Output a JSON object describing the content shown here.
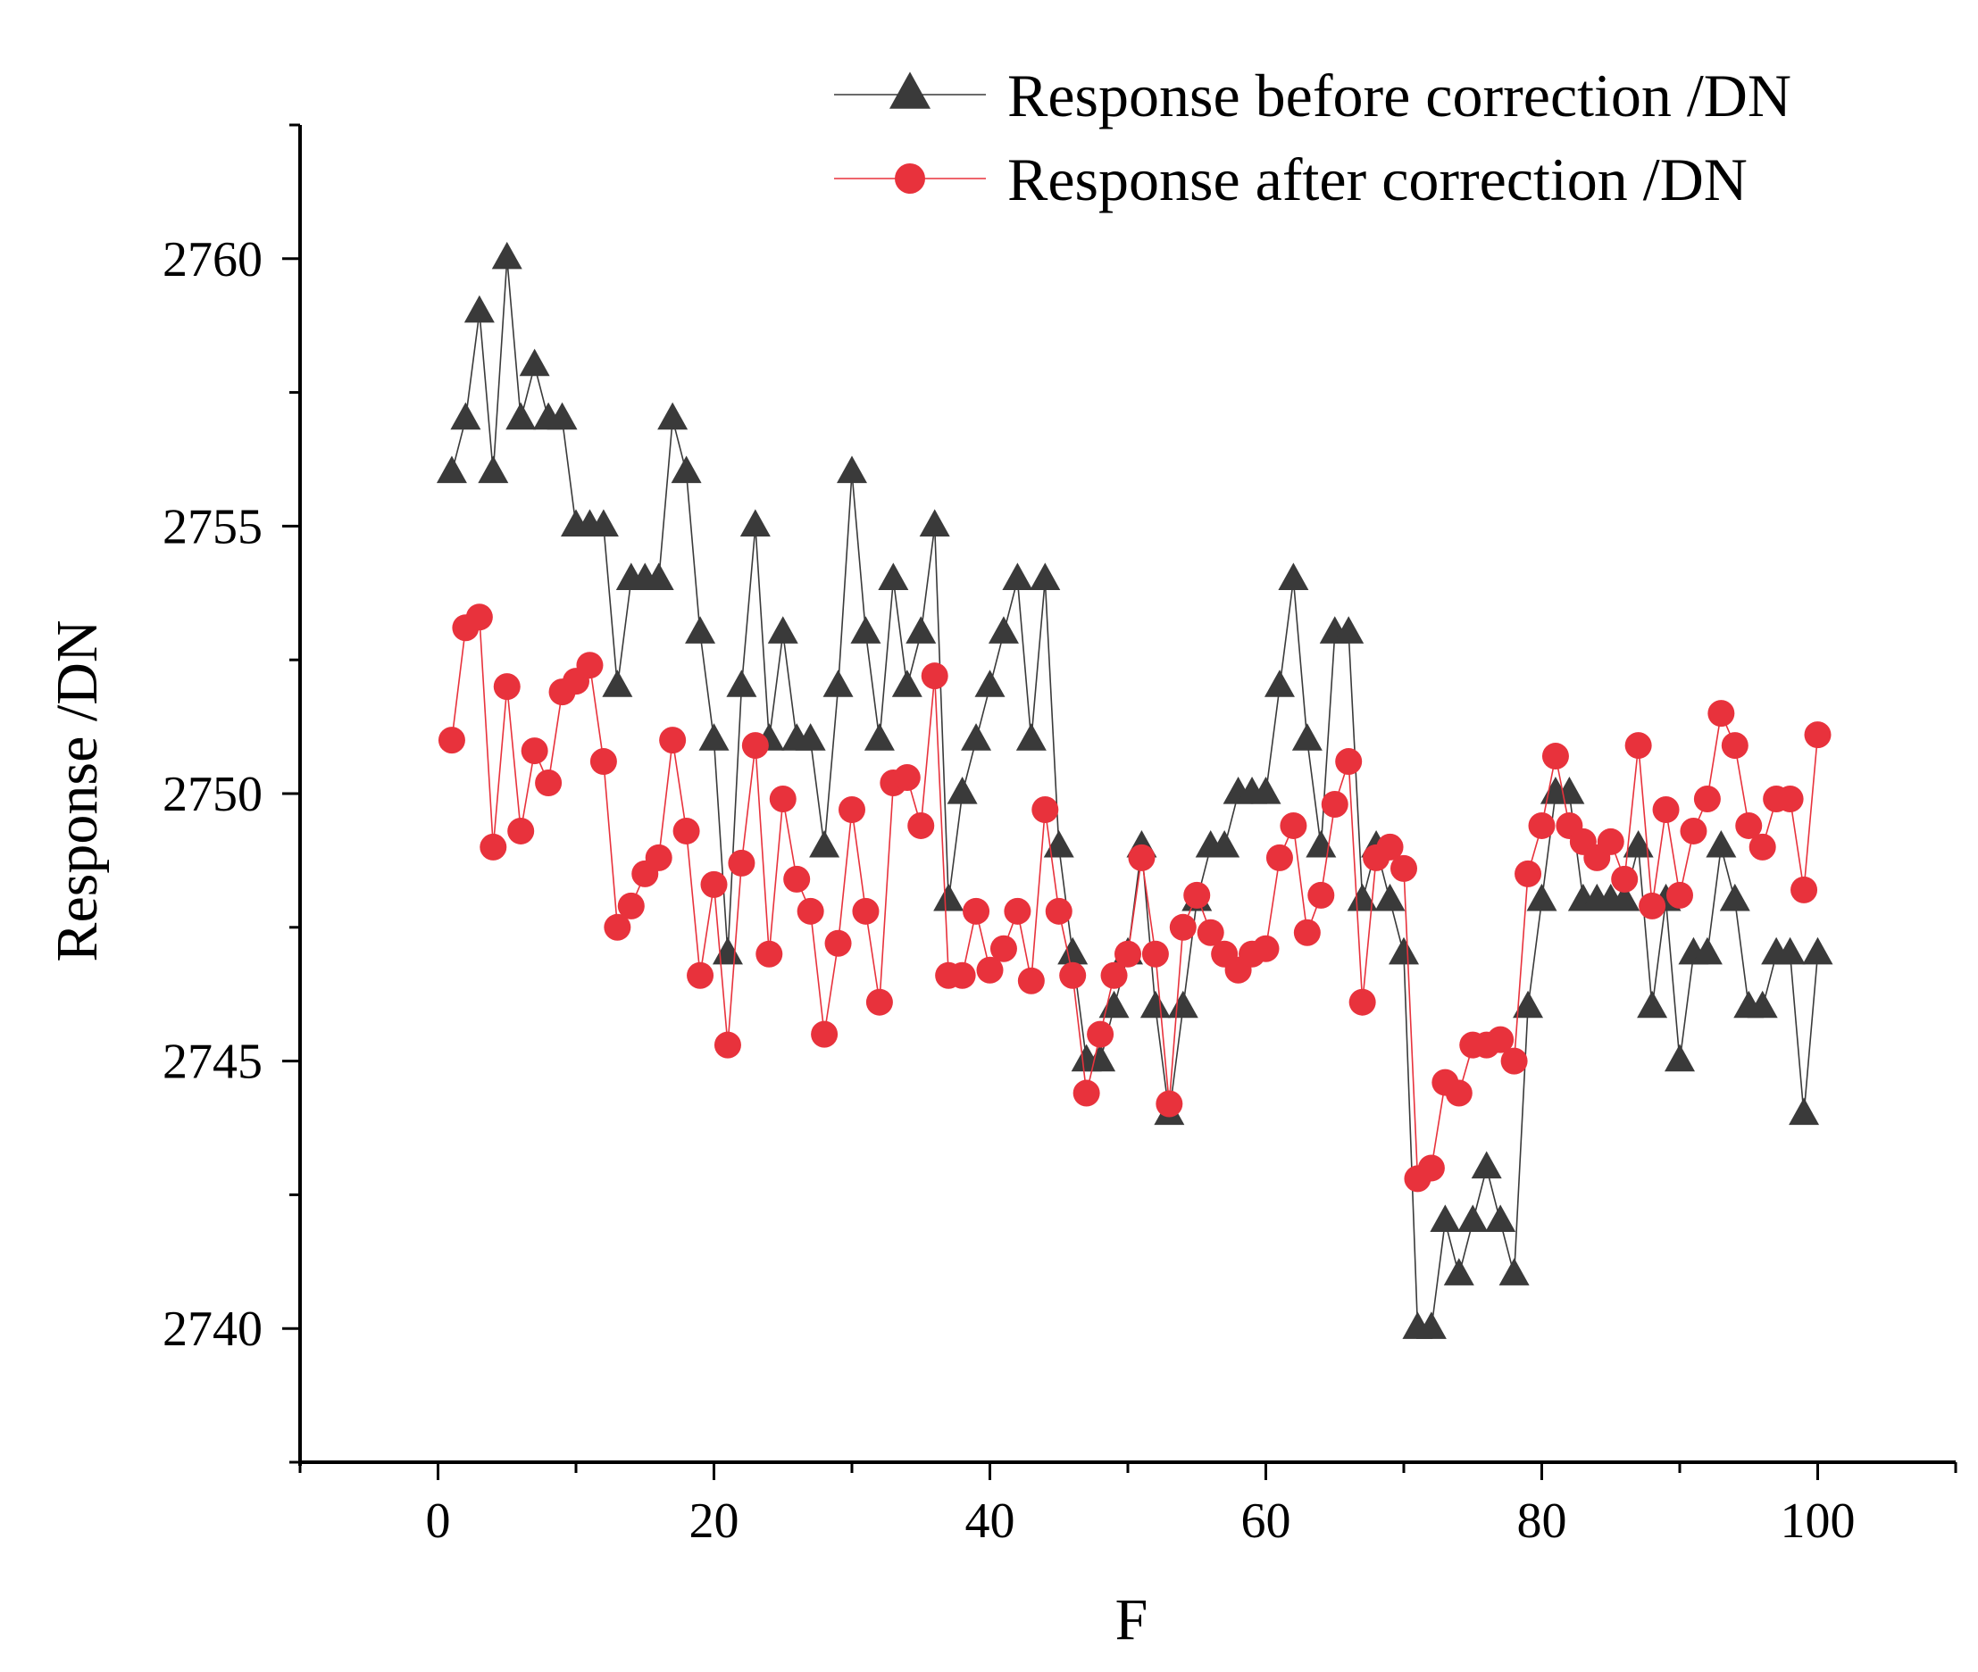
{
  "chart_data": {
    "type": "line",
    "title": "",
    "xlabel": "F",
    "ylabel": "Response /DN",
    "xlim": [
      -10,
      110
    ],
    "ylim": [
      2737.5,
      2762.5
    ],
    "x_ticks": [
      0,
      20,
      40,
      60,
      80,
      100
    ],
    "x_tick_labels": [
      "0",
      "20",
      "40",
      "60",
      "80",
      "100"
    ],
    "y_ticks": [
      2740,
      2745,
      2750,
      2755,
      2760
    ],
    "y_tick_labels": [
      "2740",
      "2745",
      "2750",
      "2755",
      "2760"
    ],
    "grid": false,
    "legend_position": "top-right",
    "x": [
      1,
      2,
      3,
      4,
      5,
      6,
      7,
      8,
      9,
      10,
      11,
      12,
      13,
      14,
      15,
      16,
      17,
      18,
      19,
      20,
      21,
      22,
      23,
      24,
      25,
      26,
      27,
      28,
      29,
      30,
      31,
      32,
      33,
      34,
      35,
      36,
      37,
      38,
      39,
      40,
      41,
      42,
      43,
      44,
      45,
      46,
      47,
      48,
      49,
      50,
      51,
      52,
      53,
      54,
      55,
      56,
      57,
      58,
      59,
      60,
      61,
      62,
      63,
      64,
      65,
      66,
      67,
      68,
      69,
      70,
      71,
      72,
      73,
      74,
      75,
      76,
      77,
      78,
      79,
      80,
      81,
      82,
      83,
      84,
      85,
      86,
      87,
      88,
      89,
      90,
      91,
      92,
      93,
      94,
      95,
      96,
      97,
      98,
      99,
      100
    ],
    "series": [
      {
        "name": "Response before correction /DN",
        "color": "#3a3a3a",
        "marker": "triangle",
        "values": [
          2756,
          2757,
          2759,
          2756,
          2760,
          2757,
          2758,
          2757,
          2757,
          2755,
          2755,
          2755,
          2752,
          2754,
          2754,
          2754,
          2757,
          2756,
          2753,
          2751,
          2747,
          2752,
          2755,
          2751,
          2753,
          2751,
          2751,
          2749,
          2752,
          2756,
          2753,
          2751,
          2754,
          2752,
          2753,
          2755,
          2748,
          2750,
          2751,
          2752,
          2753,
          2754,
          2751,
          2754,
          2749,
          2747,
          2745,
          2745,
          2746,
          2747,
          2749,
          2746,
          2744,
          2746,
          2748,
          2749,
          2749,
          2750,
          2750,
          2750,
          2752,
          2754,
          2751,
          2749,
          2753,
          2753,
          2748,
          2749,
          2748,
          2747,
          2740,
          2740,
          2742,
          2741,
          2742,
          2743,
          2742,
          2741,
          2746,
          2748,
          2750,
          2750,
          2748,
          2748,
          2748,
          2748,
          2749,
          2746,
          2748,
          2745,
          2747,
          2747,
          2749,
          2748,
          2746,
          2746,
          2747,
          2747,
          2744,
          2747
        ]
      },
      {
        "name": "Response after correction /DN",
        "color": "#e8323c",
        "marker": "circle",
        "values": [
          2751.0,
          2753.1,
          2753.3,
          2749.0,
          2752.0,
          2749.3,
          2750.8,
          2750.2,
          2751.9,
          2752.1,
          2752.4,
          2750.6,
          2747.5,
          2747.9,
          2748.5,
          2748.8,
          2751.0,
          2749.3,
          2746.6,
          2748.3,
          2745.3,
          2748.7,
          2750.9,
          2747.0,
          2749.9,
          2748.4,
          2747.8,
          2745.5,
          2747.2,
          2749.7,
          2747.8,
          2746.1,
          2750.2,
          2750.3,
          2749.4,
          2752.2,
          2746.6,
          2746.6,
          2747.8,
          2746.7,
          2747.1,
          2747.8,
          2746.5,
          2749.7,
          2747.8,
          2746.6,
          2744.4,
          2745.5,
          2746.6,
          2747.0,
          2748.8,
          2747.0,
          2744.2,
          2747.5,
          2748.1,
          2747.4,
          2747.0,
          2746.7,
          2747.0,
          2747.1,
          2748.8,
          2749.4,
          2747.4,
          2748.1,
          2749.8,
          2750.6,
          2746.1,
          2748.8,
          2749.0,
          2748.6,
          2742.8,
          2743.0,
          2744.6,
          2744.4,
          2745.3,
          2745.3,
          2745.4,
          2745.0,
          2748.5,
          2749.4,
          2750.7,
          2749.4,
          2749.1,
          2748.8,
          2749.1,
          2748.4,
          2750.9,
          2747.9,
          2749.7,
          2748.1,
          2749.3,
          2749.9,
          2751.5,
          2750.9,
          2749.4,
          2749.0,
          2749.9,
          2749.9,
          2748.2,
          2751.1
        ]
      }
    ]
  }
}
